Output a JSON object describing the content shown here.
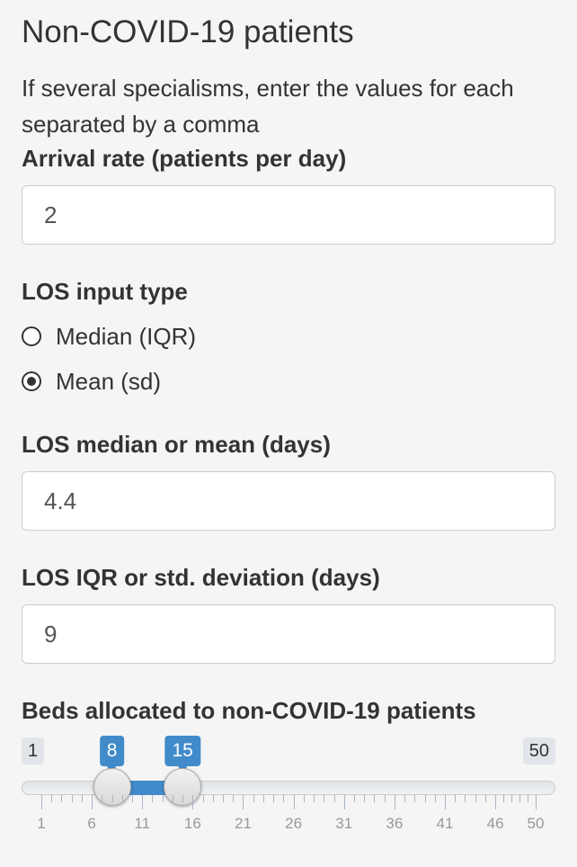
{
  "section": {
    "title": "Non-COVID-19 patients",
    "help_text": "If several specialisms, enter the values for each separated by a comma"
  },
  "arrival_rate": {
    "label": "Arrival rate (patients per day)",
    "value": "2"
  },
  "los_input_type": {
    "label": "LOS input type",
    "options": [
      {
        "label": "Median (IQR)",
        "selected": false
      },
      {
        "label": "Mean (sd)",
        "selected": true
      }
    ]
  },
  "los_mean": {
    "label": "LOS median or mean (days)",
    "value": "4.4"
  },
  "los_sd": {
    "label": "LOS IQR or std. deviation (days)",
    "value": "9"
  },
  "beds_slider": {
    "label": "Beds allocated to non-COVID-19 patients",
    "min": 1,
    "max": 50,
    "from": 8,
    "to": 15,
    "tick_labels": [
      "1",
      "6",
      "11",
      "16",
      "21",
      "26",
      "31",
      "36",
      "41",
      "46",
      "50"
    ],
    "accent_color": "#428bca"
  }
}
